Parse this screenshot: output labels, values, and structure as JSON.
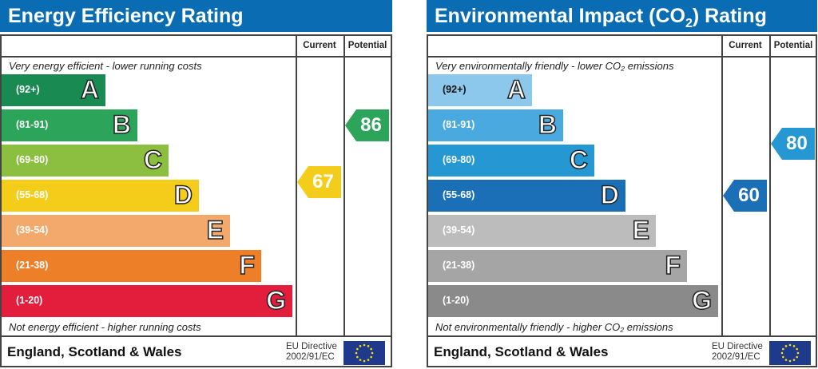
{
  "energy": {
    "title": "Energy Efficiency Rating",
    "col_current": "Current",
    "col_potential": "Potential",
    "top_caption": "Very energy efficient - lower running costs",
    "bottom_caption": "Not energy efficient - higher running costs",
    "bands": [
      {
        "range": "(92+)",
        "letter": "A",
        "color": "#1a8a53"
      },
      {
        "range": "(81-91)",
        "letter": "B",
        "color": "#2ca55a"
      },
      {
        "range": "(69-80)",
        "letter": "C",
        "color": "#8cbf3f"
      },
      {
        "range": "(55-68)",
        "letter": "D",
        "color": "#f4cd1b"
      },
      {
        "range": "(39-54)",
        "letter": "E",
        "color": "#f2a96b"
      },
      {
        "range": "(21-38)",
        "letter": "F",
        "color": "#ec7f28"
      },
      {
        "range": "(1-20)",
        "letter": "G",
        "color": "#e31d3c"
      }
    ],
    "current": {
      "value": "67",
      "color": "#f4cd1b"
    },
    "potential": {
      "value": "86",
      "color": "#2ca55a"
    },
    "footer": "England, Scotland & Wales",
    "eu_line1": "EU Directive",
    "eu_line2": "2002/91/EC"
  },
  "environment": {
    "title_pre": "Environmental Impact (CO",
    "title_sub": "2",
    "title_post": ") Rating",
    "col_current": "Current",
    "col_potential": "Potential",
    "top_caption": "Very environmentally friendly - lower CO₂ emissions",
    "bottom_caption": "Not environmentally friendly - higher CO₂ emissions",
    "bands": [
      {
        "range": "(92+)",
        "letter": "A",
        "color": "#8cc8ec"
      },
      {
        "range": "(81-91)",
        "letter": "B",
        "color": "#4aa9df"
      },
      {
        "range": "(69-80)",
        "letter": "C",
        "color": "#2597d3"
      },
      {
        "range": "(55-68)",
        "letter": "D",
        "color": "#1a6fb7"
      },
      {
        "range": "(39-54)",
        "letter": "E",
        "color": "#bcbcbc"
      },
      {
        "range": "(21-38)",
        "letter": "F",
        "color": "#a5a5a5"
      },
      {
        "range": "(1-20)",
        "letter": "G",
        "color": "#8a8a8a"
      }
    ],
    "current": {
      "value": "60",
      "color": "#1a6fb7"
    },
    "potential": {
      "value": "80",
      "color": "#2597d3"
    },
    "footer": "England, Scotland & Wales",
    "eu_line1": "EU Directive",
    "eu_line2": "2002/91/EC"
  }
}
